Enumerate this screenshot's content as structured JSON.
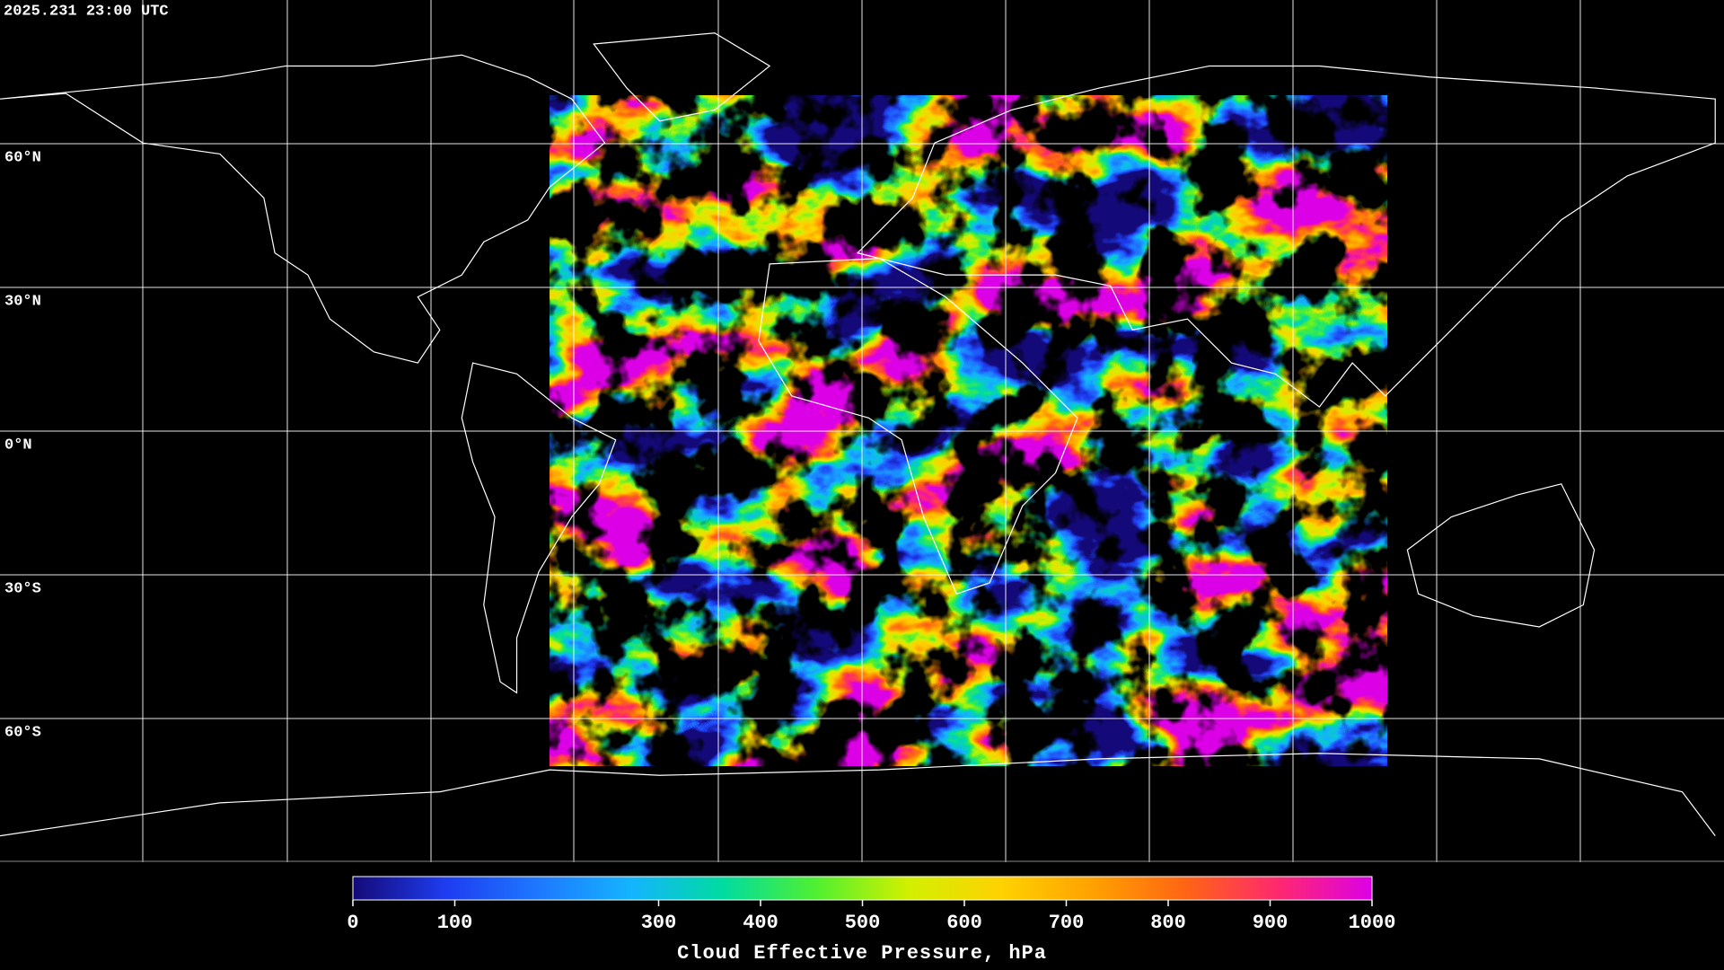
{
  "timestamp": "2025.231 23:00 UTC",
  "map": {
    "ylim": [
      -90,
      90
    ],
    "lat_lines": [
      {
        "value": 60,
        "label": "60°N"
      },
      {
        "value": 30,
        "label": "30°N"
      },
      {
        "value": 0,
        "label": "0°N"
      },
      {
        "value": -30,
        "label": "30°S"
      },
      {
        "value": -60,
        "label": "60°S"
      }
    ]
  },
  "colorbar": {
    "title": "Cloud Effective Pressure, hPa",
    "lim": [
      0,
      1000
    ],
    "ticks": [
      0,
      100,
      300,
      400,
      500,
      600,
      700,
      800,
      900,
      1000
    ],
    "colors": [
      "#140a78",
      "#1e3cf0",
      "#1e78ff",
      "#14b4ff",
      "#00dca0",
      "#50f030",
      "#d2f000",
      "#ffd200",
      "#ffa000",
      "#ff6414",
      "#ff2870",
      "#dc00e6"
    ]
  }
}
